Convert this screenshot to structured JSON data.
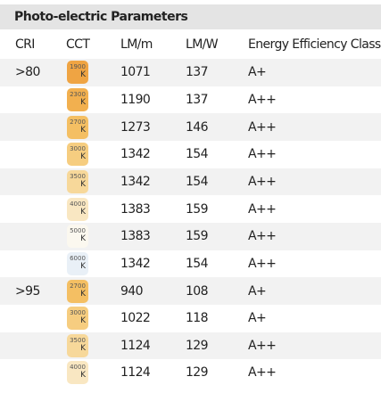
{
  "header": {
    "title": "Photo-electric Parameters"
  },
  "table": {
    "columns": [
      "CRI",
      "CCT",
      "LM/m",
      "LM/W",
      "Energy Efficiency Class"
    ],
    "rows": [
      {
        "cri": ">80",
        "cct": "1900",
        "cct_unit": "K",
        "cct_color": "#efa443",
        "lm_m": "1071",
        "lm_w": "137",
        "class": "A+"
      },
      {
        "cct": "2300",
        "cct_unit": "K",
        "cct_color": "#f2b04f",
        "lm_m": "1190",
        "lm_w": "137",
        "class": "A++"
      },
      {
        "cct": "2700",
        "cct_unit": "K",
        "cct_color": "#f4bf63",
        "lm_m": "1273",
        "lm_w": "146",
        "class": "A++"
      },
      {
        "cct": "3000",
        "cct_unit": "K",
        "cct_color": "#f6cd80",
        "lm_m": "1342",
        "lm_w": "154",
        "class": "A++"
      },
      {
        "cct": "3500",
        "cct_unit": "K",
        "cct_color": "#f7d89a",
        "lm_m": "1342",
        "lm_w": "154",
        "class": "A++"
      },
      {
        "cct": "4000",
        "cct_unit": "K",
        "cct_color": "#f9e7c2",
        "lm_m": "1383",
        "lm_w": "159",
        "class": "A++"
      },
      {
        "cct": "5000",
        "cct_unit": "K",
        "cct_color": "#fbf8ef",
        "lm_m": "1383",
        "lm_w": "159",
        "class": "A++"
      },
      {
        "cct": "6000",
        "cct_unit": "K",
        "cct_color": "#e9f0f7",
        "lm_m": "1342",
        "lm_w": "154",
        "class": "A++"
      },
      {
        "cri": ">95",
        "cct": "2700",
        "cct_unit": "K",
        "cct_color": "#f4bf63",
        "lm_m": "940",
        "lm_w": "108",
        "class": "A+"
      },
      {
        "cct": "3000",
        "cct_unit": "K",
        "cct_color": "#f6cd80",
        "lm_m": "1022",
        "lm_w": "118",
        "class": "A+"
      },
      {
        "cct": "3500",
        "cct_unit": "K",
        "cct_color": "#f7d89a",
        "lm_m": "1124",
        "lm_w": "129",
        "class": "A++"
      },
      {
        "cct": "4000",
        "cct_unit": "K",
        "cct_color": "#f9e7c2",
        "lm_m": "1124",
        "lm_w": "129",
        "class": "A++"
      }
    ]
  }
}
